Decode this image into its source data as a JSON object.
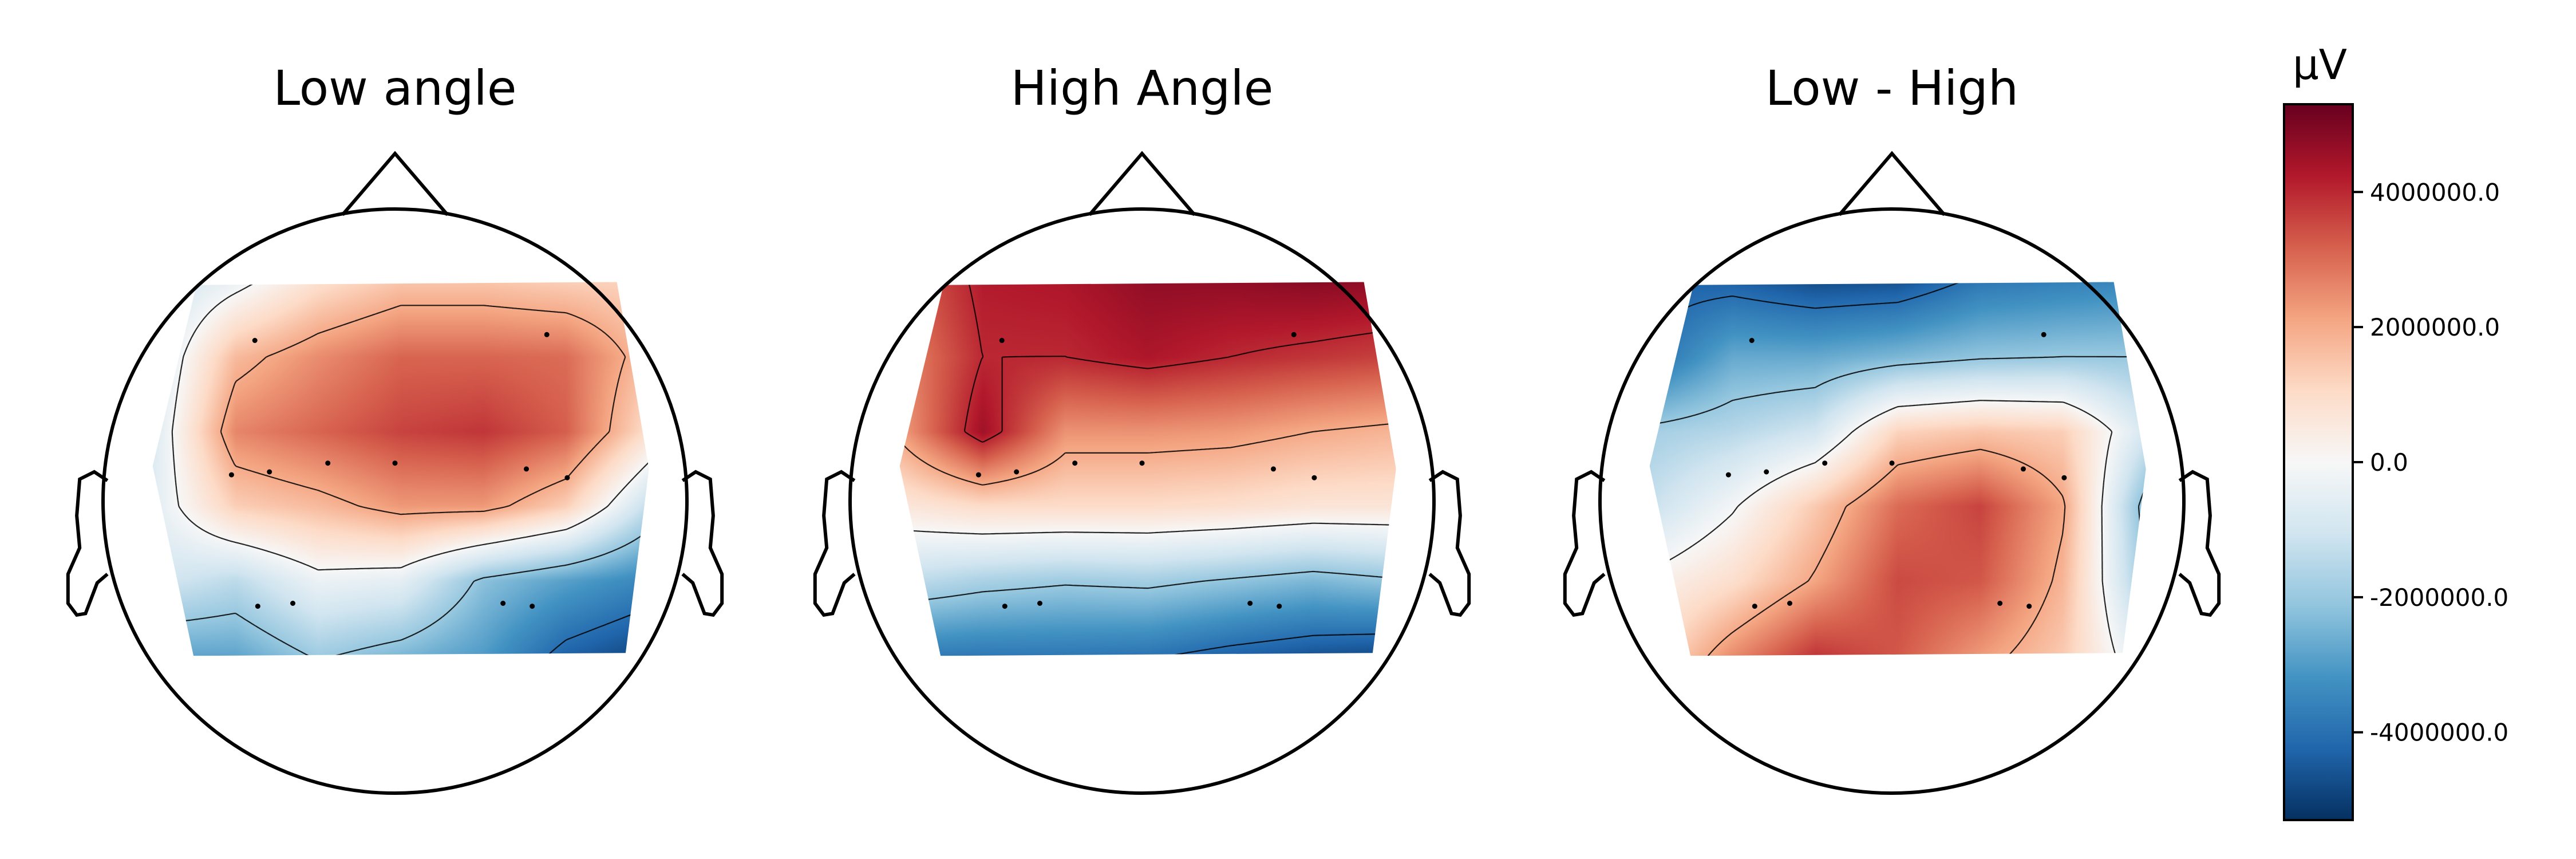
{
  "chart_data": [
    {
      "type": "heatmap",
      "title": "Low angle",
      "colormap": "RdBu_r",
      "vlim": [
        -5300000,
        5300000
      ],
      "grid": [
        [
          -1200000,
          -300000,
          900000,
          1500000,
          1500000,
          1300000,
          1200000
        ],
        [
          -1000000,
          1700000,
          2500000,
          3100000,
          3100000,
          3000000,
          1600000
        ],
        [
          -800000,
          2600000,
          3100000,
          3600000,
          3800000,
          3200000,
          900000
        ],
        [
          -600000,
          1300000,
          1700000,
          2300000,
          2300000,
          1300000,
          -1300000
        ],
        [
          -900000,
          -1400000,
          -300000,
          -500000,
          -2200000,
          -2900000,
          -3500000
        ],
        [
          -2800000,
          -2800000,
          -1900000,
          -2400000,
          -3000000,
          -4300000,
          -4900000
        ]
      ],
      "sensors": [
        [
          -0.48,
          0.55
        ],
        [
          0.52,
          0.57
        ],
        [
          -0.56,
          0.09
        ],
        [
          -0.43,
          0.1
        ],
        [
          -0.23,
          0.13
        ],
        [
          0.0,
          0.13
        ],
        [
          0.45,
          0.11
        ],
        [
          0.59,
          0.08
        ],
        [
          -0.47,
          -0.36
        ],
        [
          -0.35,
          -0.35
        ],
        [
          0.37,
          -0.35
        ],
        [
          0.47,
          -0.36
        ]
      ]
    },
    {
      "type": "heatmap",
      "title": "High Angle",
      "colormap": "RdBu_r",
      "vlim": [
        -5300000,
        5300000
      ],
      "grid": [
        [
          3000000,
          4200000,
          4300000,
          4700000,
          4700000,
          4800000,
          4700000
        ],
        [
          2500000,
          4000000,
          4000000,
          4300000,
          4000000,
          3800000,
          3600000
        ],
        [
          2200000,
          4500000,
          2400000,
          2400000,
          2300000,
          2000000,
          1800000
        ],
        [
          600000,
          1000000,
          1000000,
          1000000,
          900000,
          700000,
          700000
        ],
        [
          -1300000,
          -1700000,
          -1900000,
          -1800000,
          -2100000,
          -2400000,
          -2100000
        ],
        [
          -3700000,
          -3800000,
          -3800000,
          -3900000,
          -4300000,
          -4600000,
          -4800000
        ]
      ],
      "sensors": [
        [
          -0.48,
          0.55
        ],
        [
          0.52,
          0.57
        ],
        [
          -0.56,
          0.09
        ],
        [
          -0.43,
          0.1
        ],
        [
          -0.23,
          0.13
        ],
        [
          0.0,
          0.13
        ],
        [
          0.45,
          0.11
        ],
        [
          0.59,
          0.08
        ],
        [
          -0.47,
          -0.36
        ],
        [
          -0.35,
          -0.35
        ],
        [
          0.37,
          -0.35
        ],
        [
          0.47,
          -0.36
        ]
      ]
    },
    {
      "type": "heatmap",
      "title": "Low - High",
      "colormap": "RdBu_r",
      "vlim": [
        -5300000,
        5300000
      ],
      "grid": [
        [
          -4300000,
          -4300000,
          -4700000,
          -4600000,
          -3800000,
          -3600000,
          -3400000
        ],
        [
          -4000000,
          -2700000,
          -2700000,
          -2400000,
          -2100000,
          -2000000,
          -2000000
        ],
        [
          -1800000,
          -1500000,
          -1000000,
          1200000,
          1500000,
          1300000,
          -900000
        ],
        [
          -1200000,
          -100000,
          1400000,
          3000000,
          3600000,
          2100000,
          -2400000
        ],
        [
          200000,
          900000,
          2100000,
          3500000,
          3300000,
          1800000,
          -2000000
        ],
        [
          800000,
          2500000,
          3800000,
          3300000,
          2300000,
          1400000,
          -800000
        ]
      ],
      "sensors": [
        [
          -0.48,
          0.55
        ],
        [
          0.52,
          0.57
        ],
        [
          -0.56,
          0.09
        ],
        [
          -0.43,
          0.1
        ],
        [
          -0.23,
          0.13
        ],
        [
          0.0,
          0.13
        ],
        [
          0.45,
          0.11
        ],
        [
          0.59,
          0.08
        ],
        [
          -0.47,
          -0.36
        ],
        [
          -0.35,
          -0.35
        ],
        [
          0.37,
          -0.35
        ],
        [
          0.47,
          -0.36
        ]
      ]
    }
  ],
  "colorbar": {
    "unit": "µV",
    "ticks": [
      {
        "value": 4000000,
        "label": "4000000.0"
      },
      {
        "value": 2000000,
        "label": "2000000.0"
      },
      {
        "value": 0,
        "label": "0.0"
      },
      {
        "value": -2000000,
        "label": "-2000000.0"
      },
      {
        "value": -4000000,
        "label": "-4000000.0"
      }
    ]
  }
}
